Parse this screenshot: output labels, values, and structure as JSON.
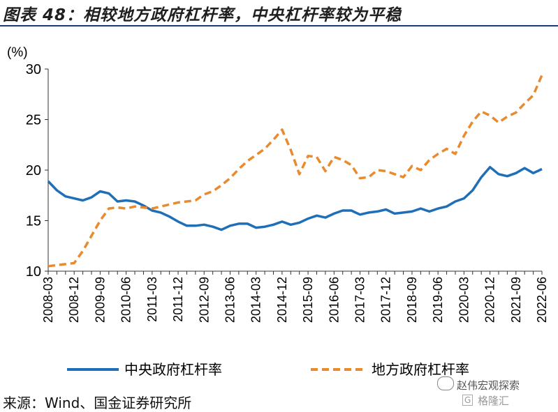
{
  "title": "图表 48：相较地方政府杠杆率，中央杠杆率较为平稳",
  "source": "来源：Wind、国金证券研究所",
  "watermark": {
    "line1": "赵伟宏观探索",
    "line2": "格隆汇",
    "logo": "G"
  },
  "chart_data": {
    "type": "line",
    "unit_label": "(%)",
    "ylim": [
      10,
      30
    ],
    "yticks": [
      10,
      15,
      20,
      25,
      30
    ],
    "x_tick_labels": [
      "2008-03",
      "2008-12",
      "2009-09",
      "2010-06",
      "2011-03",
      "2011-12",
      "2012-09",
      "2013-06",
      "2014-03",
      "2014-12",
      "2015-09",
      "2016-06",
      "2017-03",
      "2017-12",
      "2018-09",
      "2019-06",
      "2020-03",
      "2020-12",
      "2021-09",
      "2022-06"
    ],
    "x": [
      "2008-03",
      "2008-06",
      "2008-09",
      "2008-12",
      "2009-03",
      "2009-06",
      "2009-09",
      "2009-12",
      "2010-03",
      "2010-06",
      "2010-09",
      "2010-12",
      "2011-03",
      "2011-06",
      "2011-09",
      "2011-12",
      "2012-03",
      "2012-06",
      "2012-09",
      "2012-12",
      "2013-03",
      "2013-06",
      "2013-09",
      "2013-12",
      "2014-03",
      "2014-06",
      "2014-09",
      "2014-12",
      "2015-03",
      "2015-06",
      "2015-09",
      "2015-12",
      "2016-03",
      "2016-06",
      "2016-09",
      "2016-12",
      "2017-03",
      "2017-06",
      "2017-09",
      "2017-12",
      "2018-03",
      "2018-06",
      "2018-09",
      "2018-12",
      "2019-03",
      "2019-06",
      "2019-09",
      "2019-12",
      "2020-03",
      "2020-06",
      "2020-09",
      "2020-12",
      "2021-03",
      "2021-06",
      "2021-09",
      "2021-12",
      "2022-03",
      "2022-06"
    ],
    "series": [
      {
        "name": "中央政府杠杆率",
        "color": "#1f6fb8",
        "style": "solid",
        "values": [
          18.9,
          18.0,
          17.4,
          17.2,
          17.0,
          17.3,
          17.9,
          17.7,
          16.9,
          17.0,
          16.9,
          16.5,
          16.0,
          15.8,
          15.4,
          14.9,
          14.5,
          14.5,
          14.6,
          14.4,
          14.1,
          14.5,
          14.7,
          14.7,
          14.3,
          14.4,
          14.6,
          14.9,
          14.6,
          14.8,
          15.2,
          15.5,
          15.3,
          15.7,
          16.0,
          16.0,
          15.6,
          15.8,
          15.9,
          16.1,
          15.7,
          15.8,
          15.9,
          16.2,
          15.9,
          16.2,
          16.4,
          16.9,
          17.2,
          18.0,
          19.3,
          20.3,
          19.6,
          19.4,
          19.7,
          20.2,
          19.7,
          20.1
        ]
      },
      {
        "name": "地方政府杠杆率",
        "color": "#e98a2e",
        "style": "dashed",
        "values": [
          10.5,
          10.6,
          10.7,
          10.8,
          12.0,
          13.5,
          15.0,
          16.2,
          16.3,
          16.2,
          16.4,
          16.3,
          16.2,
          16.4,
          16.6,
          16.8,
          16.9,
          17.0,
          17.6,
          17.9,
          18.5,
          19.2,
          20.1,
          20.9,
          21.5,
          22.1,
          23.0,
          24.0,
          22.0,
          19.6,
          21.4,
          21.3,
          19.9,
          21.3,
          21.0,
          20.5,
          19.2,
          19.3,
          20.0,
          19.9,
          19.6,
          19.3,
          20.4,
          20.0,
          21.0,
          21.6,
          22.1,
          21.6,
          23.4,
          24.8,
          25.8,
          25.4,
          24.7,
          25.3,
          25.7,
          26.6,
          27.4,
          29.4
        ]
      }
    ],
    "legend_position": "bottom",
    "grid": false
  }
}
